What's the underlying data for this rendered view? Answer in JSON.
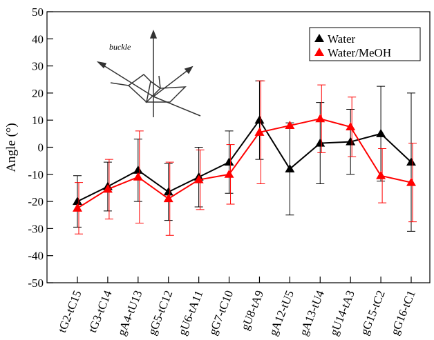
{
  "chart_data": {
    "type": "line",
    "ylabel": "Angle (°)",
    "inset_label": "buckle",
    "categories": [
      "tG2-tC15",
      "tG3-tC14",
      "gA4-tU13",
      "gG5-tC12",
      "gU6-tA11",
      "gG7-tC10",
      "gU8-tA9",
      "gA12-tU5",
      "gA13-tU4",
      "gU14-tA3",
      "gG15-tC2",
      "gG16-tC1"
    ],
    "series": [
      {
        "name": "Water",
        "color": "#000000",
        "values": [
          -20,
          -14.5,
          -8.5,
          -16.5,
          -11,
          -5.5,
          10,
          -8,
          1.5,
          2,
          5,
          -5.5
        ],
        "errors": [
          9.5,
          9,
          11.5,
          10.5,
          11,
          11.5,
          14.5,
          17,
          15,
          12,
          17.5,
          25.5
        ]
      },
      {
        "name": "Water/MeOH",
        "color": "#ff0000",
        "values": [
          -22.5,
          -15.5,
          -11,
          -19,
          -12,
          -10,
          5.5,
          8,
          10.5,
          7.5,
          -10.5,
          -13
        ],
        "errors": [
          9.5,
          11,
          17,
          13.5,
          11,
          11,
          19,
          null,
          12.5,
          11,
          10,
          14.5
        ]
      }
    ],
    "ylim": [
      -50,
      50
    ],
    "yticks": [
      -50,
      -40,
      -30,
      -20,
      -10,
      0,
      10,
      20,
      30,
      40,
      50
    ],
    "legend": "top-right"
  }
}
